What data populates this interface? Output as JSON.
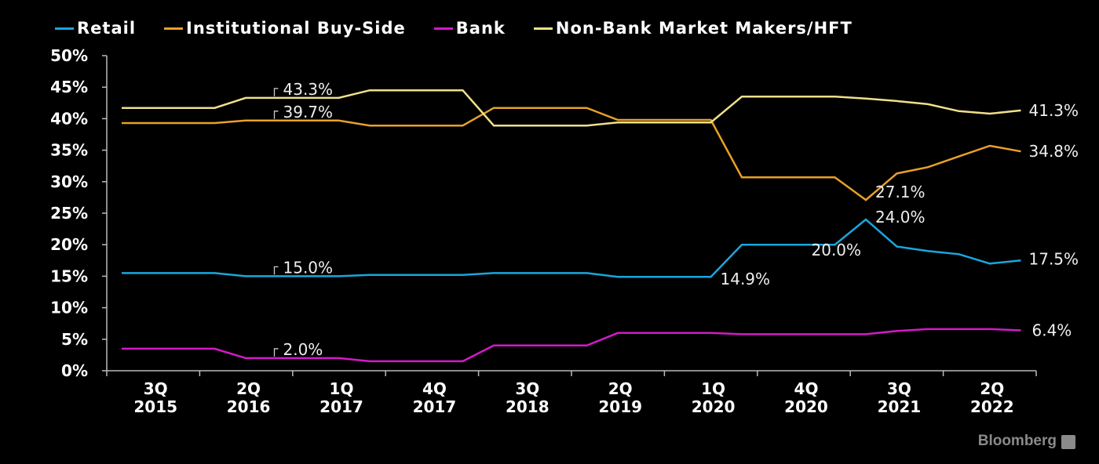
{
  "legend": [
    {
      "name": "Retail",
      "color": "#1aa6dc"
    },
    {
      "name": "Institutional Buy-Side",
      "color": "#e8a02a"
    },
    {
      "name": "Bank",
      "color": "#d419c9"
    },
    {
      "name": "Non-Bank Market Makers/HFT",
      "color": "#efe08a"
    }
  ],
  "logo": "Bloomberg",
  "chart_data": {
    "type": "line",
    "ylim": [
      0,
      50
    ],
    "y_ticks": [
      "0%",
      "5%",
      "10%",
      "15%",
      "20%",
      "25%",
      "30%",
      "35%",
      "40%",
      "45%",
      "50%"
    ],
    "x_labels": [
      {
        "q": "3Q",
        "y": "2015"
      },
      {
        "q": "2Q",
        "y": "2016"
      },
      {
        "q": "1Q",
        "y": "2017"
      },
      {
        "q": "4Q",
        "y": "2017"
      },
      {
        "q": "3Q",
        "y": "2018"
      },
      {
        "q": "2Q",
        "y": "2019"
      },
      {
        "q": "1Q",
        "y": "2020"
      },
      {
        "q": "4Q",
        "y": "2020"
      },
      {
        "q": "3Q",
        "y": "2021"
      },
      {
        "q": "2Q",
        "y": "2022"
      }
    ],
    "series": [
      {
        "name": "Retail",
        "color": "#1aa6dc",
        "points": [
          [
            0,
            15.5
          ],
          [
            3,
            15.5
          ],
          [
            4,
            15.0
          ],
          [
            7,
            15.0
          ],
          [
            8,
            15.2
          ],
          [
            11,
            15.2
          ],
          [
            12,
            15.5
          ],
          [
            15,
            15.5
          ],
          [
            16,
            14.9
          ],
          [
            19,
            14.9
          ],
          [
            20,
            20.0
          ],
          [
            23,
            20.0
          ],
          [
            24,
            24.0
          ],
          [
            25,
            19.7
          ],
          [
            26,
            19.0
          ],
          [
            27,
            18.5
          ],
          [
            28,
            17.0
          ],
          [
            29,
            17.5
          ]
        ]
      },
      {
        "name": "Institutional Buy-Side",
        "color": "#e8a02a",
        "points": [
          [
            0,
            39.3
          ],
          [
            3,
            39.3
          ],
          [
            4,
            39.7
          ],
          [
            7,
            39.7
          ],
          [
            8,
            38.9
          ],
          [
            11,
            38.9
          ],
          [
            12,
            41.7
          ],
          [
            15,
            41.7
          ],
          [
            16,
            39.8
          ],
          [
            19,
            39.8
          ],
          [
            20,
            30.7
          ],
          [
            23,
            30.7
          ],
          [
            24,
            27.1
          ],
          [
            25,
            31.3
          ],
          [
            26,
            32.3
          ],
          [
            27,
            34.0
          ],
          [
            28,
            35.7
          ],
          [
            29,
            34.8
          ]
        ]
      },
      {
        "name": "Bank",
        "color": "#d419c9",
        "points": [
          [
            0,
            3.5
          ],
          [
            3,
            3.5
          ],
          [
            4,
            2.0
          ],
          [
            7,
            2.0
          ],
          [
            8,
            1.5
          ],
          [
            11,
            1.5
          ],
          [
            12,
            4.0
          ],
          [
            15,
            4.0
          ],
          [
            16,
            6.0
          ],
          [
            19,
            6.0
          ],
          [
            20,
            5.8
          ],
          [
            24,
            5.8
          ],
          [
            25,
            6.3
          ],
          [
            26,
            6.6
          ],
          [
            28,
            6.6
          ],
          [
            29,
            6.4
          ]
        ]
      },
      {
        "name": "Non-Bank Market Makers/HFT",
        "color": "#efe08a",
        "points": [
          [
            0,
            41.7
          ],
          [
            3,
            41.7
          ],
          [
            4,
            43.3
          ],
          [
            7,
            43.3
          ],
          [
            8,
            44.5
          ],
          [
            11,
            44.5
          ],
          [
            12,
            38.9
          ],
          [
            15,
            38.9
          ],
          [
            16,
            39.4
          ],
          [
            19,
            39.4
          ],
          [
            20,
            43.5
          ],
          [
            23,
            43.5
          ],
          [
            24,
            43.2
          ],
          [
            25,
            42.8
          ],
          [
            26,
            42.3
          ],
          [
            27,
            41.2
          ],
          [
            28,
            40.8
          ],
          [
            29,
            41.3
          ]
        ]
      }
    ],
    "annotations": [
      {
        "text": "43.3%",
        "x": 5,
        "y": 43.3,
        "bracket": true
      },
      {
        "text": "39.7%",
        "x": 5,
        "y": 39.7,
        "bracket": true
      },
      {
        "text": "15.0%",
        "x": 5,
        "y": 15.0,
        "bracket": true
      },
      {
        "text": "2.0%",
        "x": 5,
        "y": 2.0,
        "bracket": true
      },
      {
        "text": "14.9%",
        "x": 19,
        "y": 14.9,
        "bracket": false
      },
      {
        "text": "27.1%",
        "x": 24,
        "y": 27.1,
        "bracket": false
      },
      {
        "text": "24.0%",
        "x": 24,
        "y": 24.0,
        "bracket": false
      },
      {
        "text": "20.0%",
        "x": 23,
        "y": 20.0,
        "bracket": false
      },
      {
        "text": "41.3%",
        "x": 29,
        "y": 41.3,
        "bracket": false
      },
      {
        "text": "34.8%",
        "x": 29,
        "y": 34.8,
        "bracket": false
      },
      {
        "text": "17.5%",
        "x": 29,
        "y": 17.5,
        "bracket": false
      },
      {
        "text": "6.4%",
        "x": 29,
        "y": 6.4,
        "bracket": false
      }
    ]
  }
}
